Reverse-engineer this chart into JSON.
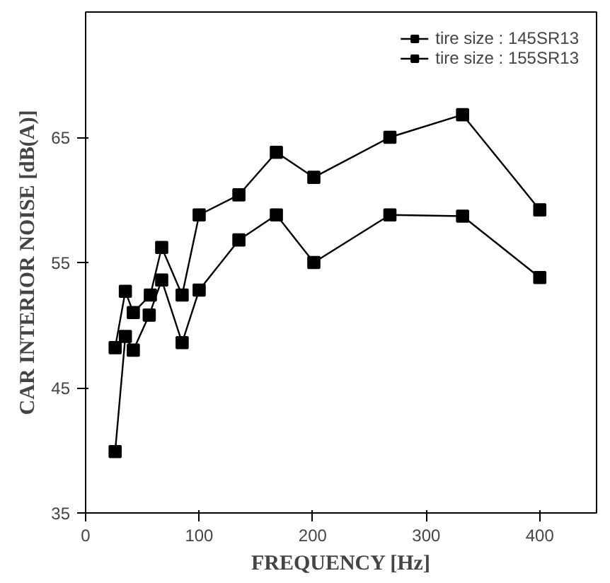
{
  "chart_data": {
    "type": "line",
    "xlabel": "FREQUENCY [Hz]",
    "ylabel": "CAR INTERIOR NOISE [dB(A)]",
    "xlim": [
      0,
      450
    ],
    "xticks": [
      0,
      100,
      200,
      300,
      400
    ],
    "ylim": [
      35,
      75
    ],
    "yticks": [
      35,
      45,
      55,
      65
    ],
    "grid": false,
    "legend": "top right",
    "marker": "square",
    "line_style": "solid",
    "series": [
      {
        "name": "tire size : 145SR13",
        "color": "#000000",
        "x": [
          26,
          35,
          42,
          57,
          67,
          85,
          100,
          135,
          168,
          201,
          268,
          332,
          400
        ],
        "values": [
          48.2,
          52.7,
          51.0,
          52.4,
          56.2,
          52.4,
          58.8,
          60.4,
          63.8,
          61.8,
          65.0,
          66.8,
          59.2
        ]
      },
      {
        "name": "tire size : 155SR13",
        "color": "#000000",
        "x": [
          26,
          35,
          42,
          56,
          67,
          85,
          100,
          135,
          168,
          201,
          268,
          332,
          400
        ],
        "values": [
          39.9,
          49.1,
          48.0,
          50.8,
          53.6,
          48.6,
          52.8,
          56.8,
          58.8,
          55.0,
          58.8,
          58.7,
          53.8
        ]
      }
    ]
  }
}
